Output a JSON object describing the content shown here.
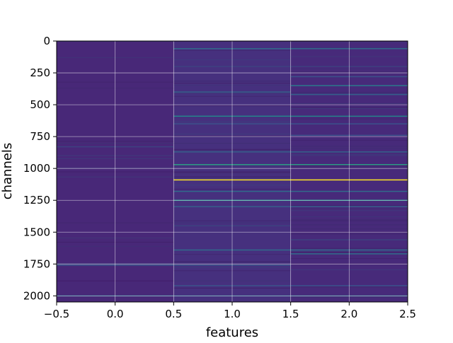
{
  "chart_data": {
    "type": "heatmap",
    "title": "",
    "xlabel": "features",
    "ylabel": "channels",
    "xlim": [
      -0.5,
      2.5
    ],
    "ylim": [
      2048,
      0
    ],
    "y_inverted": true,
    "grid": true,
    "colormap": "viridis",
    "columns": [
      0,
      1,
      2
    ],
    "rows": 2048,
    "x_ticks": [
      -0.5,
      0.0,
      0.5,
      1.0,
      1.5,
      2.0,
      2.5
    ],
    "x_tick_labels": [
      "−0.5",
      "0.0",
      "0.5",
      "1.0",
      "1.5",
      "2.0",
      "2.5"
    ],
    "y_ticks": [
      0,
      250,
      500,
      750,
      1000,
      1250,
      1500,
      1750,
      2000
    ],
    "y_tick_labels": [
      "0",
      "250",
      "500",
      "750",
      "1000",
      "1250",
      "1500",
      "1750",
      "2000"
    ],
    "background_color": "#472a7a",
    "highlighted_rows": [
      {
        "channel": 1090,
        "columns": [
          1,
          2
        ],
        "intensity": 1.0
      },
      {
        "channel": 970,
        "columns": [
          1,
          2
        ],
        "intensity": 0.55
      },
      {
        "channel": 1250,
        "columns": [
          1,
          2
        ],
        "intensity": 0.5
      },
      {
        "channel": 590,
        "columns": [
          1,
          2
        ],
        "intensity": 0.45
      },
      {
        "channel": 350,
        "columns": [
          2
        ],
        "intensity": 0.4
      },
      {
        "channel": 1180,
        "columns": [
          1,
          2
        ],
        "intensity": 0.35
      },
      {
        "channel": 1640,
        "columns": [
          1,
          2
        ],
        "intensity": 0.35
      },
      {
        "channel": 1670,
        "columns": [
          2
        ],
        "intensity": 0.35
      },
      {
        "channel": 60,
        "columns": [
          1,
          2
        ],
        "intensity": 0.35
      },
      {
        "channel": 400,
        "columns": [
          1
        ],
        "intensity": 0.3
      },
      {
        "channel": 420,
        "columns": [
          2
        ],
        "intensity": 0.3
      },
      {
        "channel": 870,
        "columns": [
          1,
          2
        ],
        "intensity": 0.3
      },
      {
        "channel": 1300,
        "columns": [
          1,
          2
        ],
        "intensity": 0.3
      },
      {
        "channel": 2000,
        "columns": [
          0,
          1,
          2
        ],
        "intensity": 0.3
      },
      {
        "channel": 280,
        "columns": [
          2
        ],
        "intensity": 0.25
      },
      {
        "channel": 650,
        "columns": [
          1,
          2
        ],
        "intensity": 0.25
      },
      {
        "channel": 740,
        "columns": [
          2
        ],
        "intensity": 0.25
      },
      {
        "channel": 1760,
        "columns": [
          0,
          1
        ],
        "intensity": 0.25
      },
      {
        "channel": 1920,
        "columns": [
          1,
          2
        ],
        "intensity": 0.25
      },
      {
        "channel": 830,
        "columns": [
          0
        ],
        "intensity": 0.2
      },
      {
        "channel": 1750,
        "columns": [
          0
        ],
        "intensity": 0.2
      },
      {
        "channel": 200,
        "columns": [
          1,
          2
        ],
        "intensity": 0.2
      },
      {
        "channel": 1450,
        "columns": [
          1
        ],
        "intensity": 0.2
      },
      {
        "channel": 1560,
        "columns": [
          2
        ],
        "intensity": 0.2
      }
    ]
  }
}
